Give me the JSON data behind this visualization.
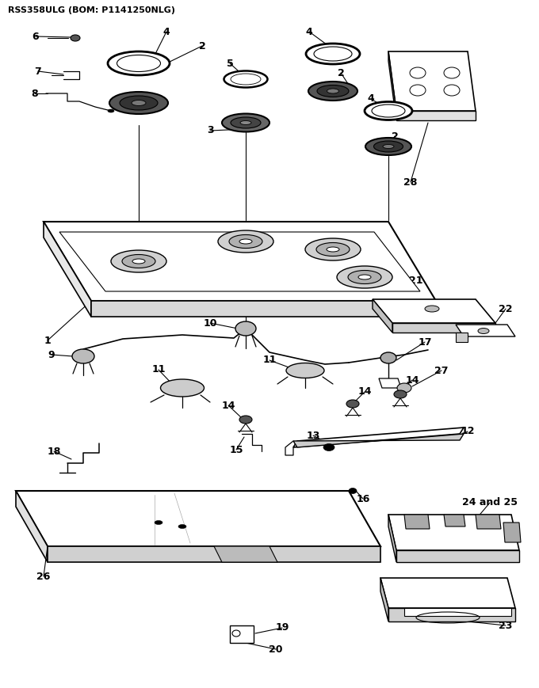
{
  "title": "RSS358ULG (BOM: P1141250NLG)",
  "bg_color": "#ffffff",
  "fig_width": 6.8,
  "fig_height": 8.69,
  "dpi": 100
}
